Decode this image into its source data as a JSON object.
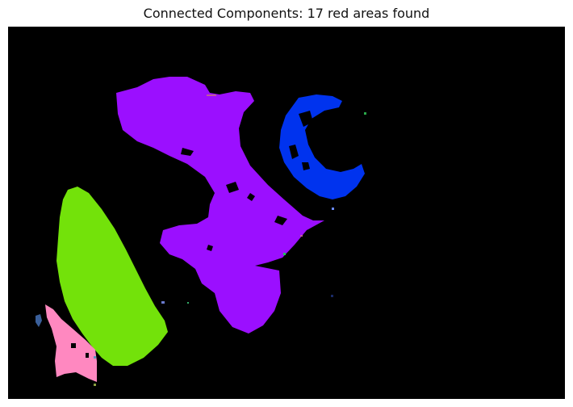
{
  "title": "Connected Components: 17 red areas found",
  "background_color": "#000000",
  "component_colors": {
    "purple": "#9b0fff",
    "blue": "#0033ee",
    "green": "#73e20a",
    "pink": "#ff88c0",
    "steel_blue": "#3a5f9a"
  }
}
